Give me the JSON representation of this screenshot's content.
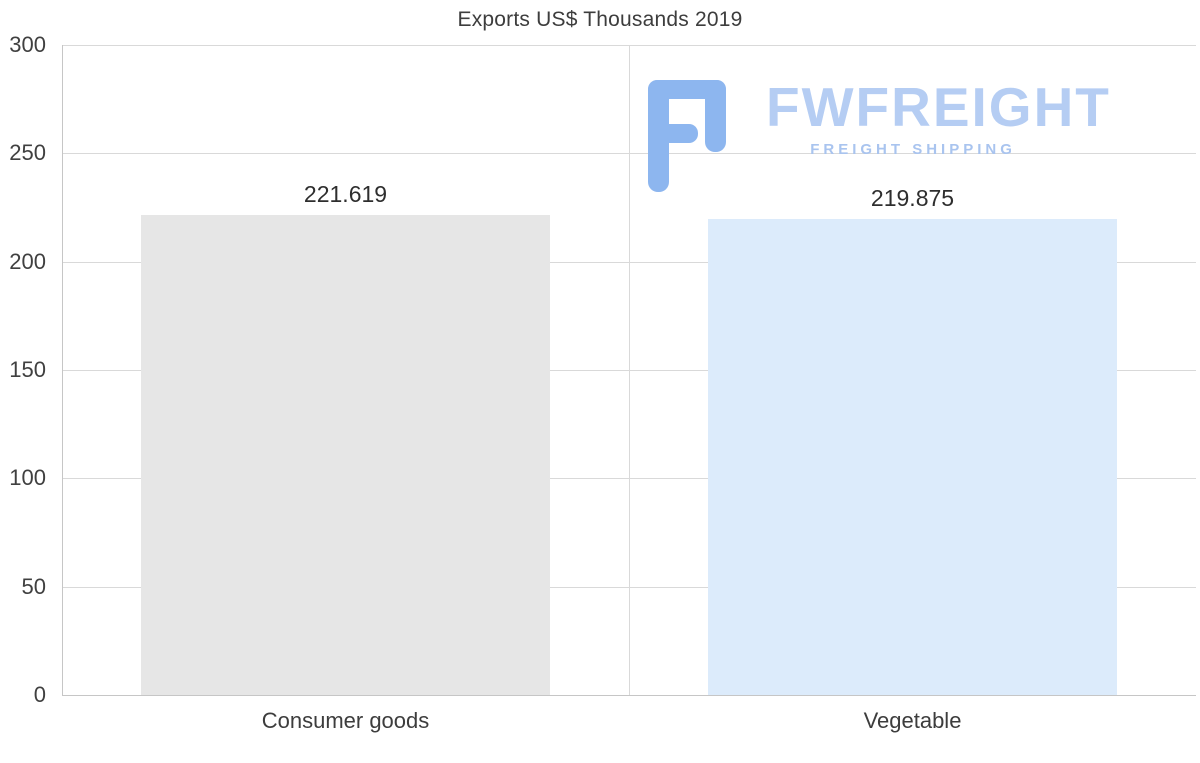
{
  "title": "Exports US$ Thousands 2019",
  "watermark": {
    "brand": "FWFREIGHT",
    "tagline": "FREIGHT SHIPPING",
    "icon": "fwfreight-logo-icon",
    "brand_color": "#b5cdf3",
    "tagline_color": "#a9c4ef",
    "icon_color": "#8db6ef"
  },
  "chart_data": {
    "type": "bar",
    "title": "Exports US$ Thousands 2019",
    "categories": [
      "Consumer goods",
      "Vegetable"
    ],
    "values": [
      221.619,
      219.875
    ],
    "value_labels": [
      "221.619",
      "219.875"
    ],
    "bar_colors": [
      "#e6e6e6",
      "#dcebfb"
    ],
    "xlabel": "",
    "ylabel": "",
    "ylim": [
      0,
      300
    ],
    "yticks": [
      0,
      50,
      100,
      150,
      200,
      250,
      300
    ],
    "grid": "horizontal-and-category-separator",
    "legend": "none",
    "axis_color": "#c6c6c6",
    "gridline_color": "#d9d9d9",
    "text_color": "#3d3d3d"
  }
}
